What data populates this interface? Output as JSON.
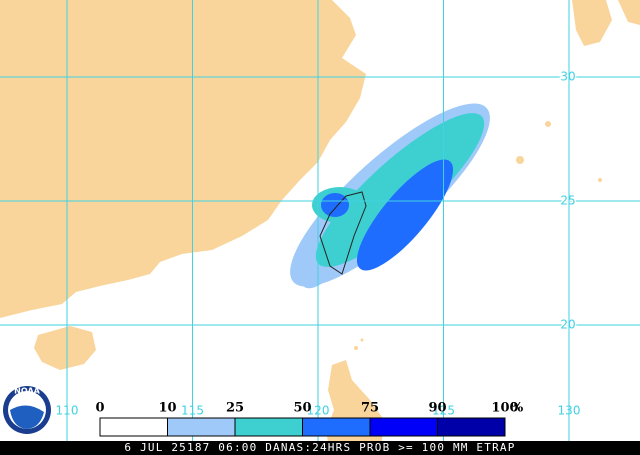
{
  "map": {
    "latitudes": [
      30,
      25,
      20
    ],
    "longitudes": [
      110,
      115,
      120,
      125,
      130
    ],
    "grid_color": "#3fd2e2",
    "land_color": "#f9d59c",
    "logo": "NOAA"
  },
  "legend": {
    "levels": [
      0,
      10,
      25,
      50,
      75,
      90,
      100
    ],
    "unit": "%",
    "colors": [
      "#ffffff",
      "#9fc9f9",
      "#3ed0d0",
      "#1f6dff",
      "#0000f8",
      "#0000a8"
    ]
  },
  "footer": "6 JUL 25187 06:00 DANAS:24HRS PROB >= 100 MM ETRAP"
}
